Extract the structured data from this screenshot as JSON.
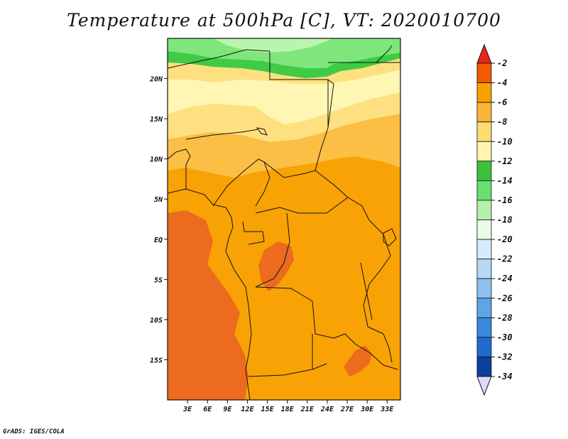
{
  "title": "Temperature at 500hPa [C], VT: 2020010700",
  "credit": "GrADS: IGES/COLA",
  "map": {
    "lon_range": [
      0,
      35
    ],
    "lat_range": [
      -20,
      25
    ],
    "lon_ticks": [
      {
        "value": 3,
        "label": "3E"
      },
      {
        "value": 6,
        "label": "6E"
      },
      {
        "value": 9,
        "label": "9E"
      },
      {
        "value": 12,
        "label": "12E"
      },
      {
        "value": 15,
        "label": "15E"
      },
      {
        "value": 18,
        "label": "18E"
      },
      {
        "value": 21,
        "label": "21E"
      },
      {
        "value": 24,
        "label": "24E"
      },
      {
        "value": 27,
        "label": "27E"
      },
      {
        "value": 30,
        "label": "30E"
      },
      {
        "value": 33,
        "label": "33E"
      }
    ],
    "lat_ticks": [
      {
        "value": 20,
        "label": "20N"
      },
      {
        "value": 15,
        "label": "15N"
      },
      {
        "value": 10,
        "label": "10N"
      },
      {
        "value": 5,
        "label": "5N"
      },
      {
        "value": 0,
        "label": "EQ"
      },
      {
        "value": -5,
        "label": "5S"
      },
      {
        "value": -10,
        "label": "10S"
      },
      {
        "value": -15,
        "label": "15S"
      }
    ]
  },
  "legend": {
    "top_arrow_color": "#e8241b",
    "bottom_arrow_color": "#dcdcf5",
    "bins": [
      {
        "label": "-2",
        "color": "#f05a05"
      },
      {
        "label": "-4",
        "color": "#f9a104"
      },
      {
        "label": "-6",
        "color": "#fbb537"
      },
      {
        "label": "-8",
        "color": "#fedc71"
      },
      {
        "label": "-10",
        "color": "#fff5b0"
      },
      {
        "label": "-12",
        "color": "#3cc13c"
      },
      {
        "label": "-14",
        "color": "#68e070"
      },
      {
        "label": "-16",
        "color": "#b5f0aa"
      },
      {
        "label": "-18",
        "color": "#e8fce6"
      },
      {
        "label": "-20",
        "color": "#d6ecfa"
      },
      {
        "label": "-22",
        "color": "#b6d8f5"
      },
      {
        "label": "-24",
        "color": "#8fc1ef"
      },
      {
        "label": "-26",
        "color": "#5ea5e8"
      },
      {
        "label": "-28",
        "color": "#3b88de"
      },
      {
        "label": "-30",
        "color": "#1f6bd0"
      },
      {
        "label": "-32",
        "color": "#0d3f9e"
      },
      {
        "label": "-34",
        "color": "#121569"
      }
    ]
  },
  "colors": {
    "warmest": "#e8581e",
    "warm_orange": "#f8a205",
    "light_orange": "#fbbf45",
    "yellow": "#fee080",
    "pale_yellow": "#fff6b3",
    "green": "#3fcb45",
    "light_green": "#7ee67a",
    "pale_green": "#b9f5ae",
    "borders": "#111111"
  }
}
